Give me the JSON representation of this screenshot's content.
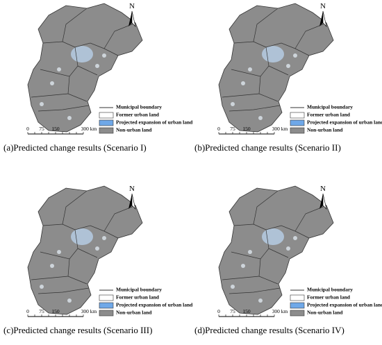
{
  "north": "N",
  "scale": [
    "0",
    "75",
    "150",
    "300 km"
  ],
  "legend": [
    "Municipal boundary",
    "Former urban land",
    "Projected expansion of urban land",
    "Non-urban land"
  ],
  "panels": [
    {
      "caption": "(a)Predicted change results (Scenario I)"
    },
    {
      "caption": "(b)Predicted change results (Scenario II)"
    },
    {
      "caption": "(c)Predicted change results (Scenario III)"
    },
    {
      "caption": "(d)Predicted change results (Scenario IV)"
    }
  ]
}
